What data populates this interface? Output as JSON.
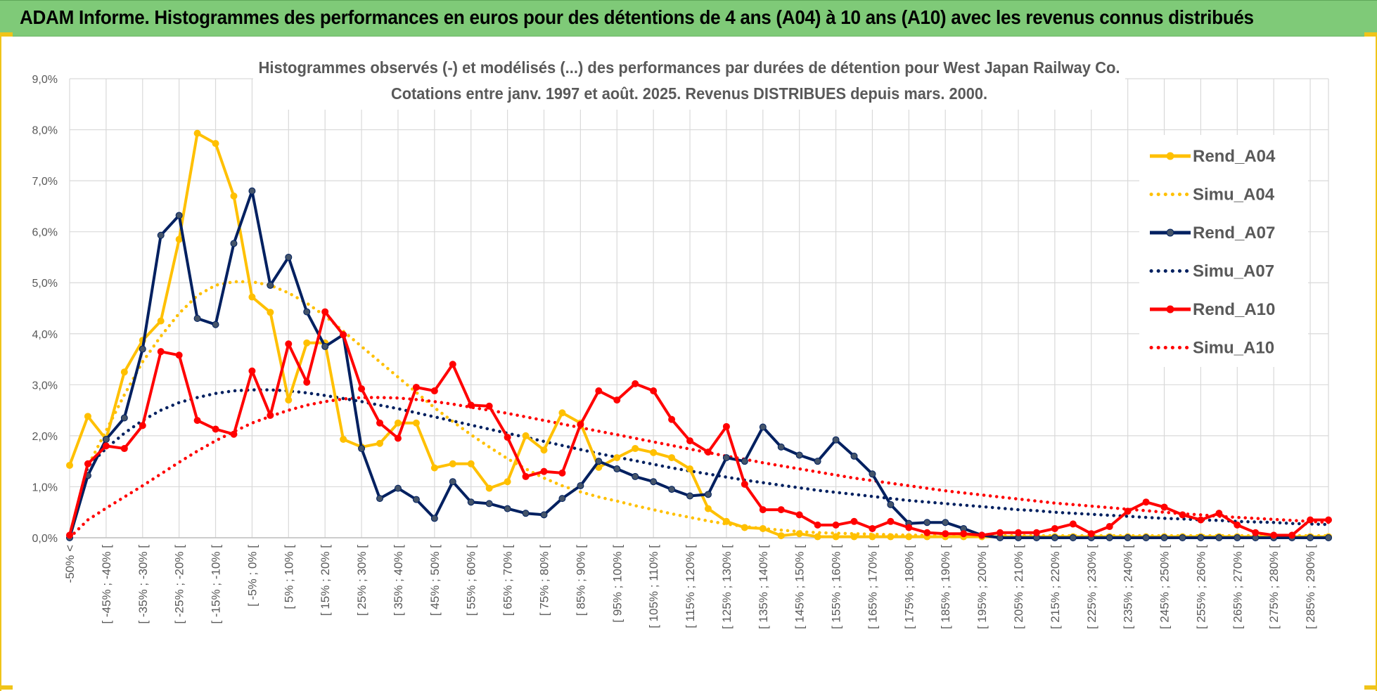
{
  "header": {
    "title": "ADAM Informe. Histogrammes des performances en euros pour des détentions de 4 ans (A04) à 10 ans (A10) avec les revenus connus distribués"
  },
  "chart_data": {
    "type": "line",
    "title": "Histogrammes observés (-) et modélisés (...) des performances par durées de détention pour West Japan Railway Co.",
    "subtitle": "Cotations entre janv. 1997 et août. 2025. Revenus DISTRIBUES depuis mars. 2000.",
    "xlabel": "",
    "ylabel": "",
    "ylim": [
      0,
      9
    ],
    "y_ticks": [
      "0,0%",
      "1,0%",
      "2,0%",
      "3,0%",
      "4,0%",
      "5,0%",
      "6,0%",
      "7,0%",
      "8,0%",
      "9,0%"
    ],
    "grid": true,
    "legend_position": "right",
    "n_points": 70,
    "x_tick_labels": [
      "-50% <",
      "[ -45% ; -40% [",
      "[ -35% ; -30% [",
      "[ -25% ; -20% [",
      "[ -15% ; -10% [",
      "[ -5% ; 0% [",
      "[ 5% ; 10% [",
      "[ 15% ; 20% [",
      "[ 25% ; 30% [",
      "[ 35% ; 40% [",
      "[ 45% ; 50% [",
      "[ 55% ; 60% [",
      "[ 65% ; 70% [",
      "[ 75% ; 80% [",
      "[ 85% ; 90% [",
      "[ 95% ; 100% [",
      "[ 105% ; 110% [",
      "[ 115% ; 120% [",
      "[ 125% ; 130% [",
      "[ 135% ; 140% [",
      "[ 145% ; 150% [",
      "[ 155% ; 160% [",
      "[ 165% ; 170% [",
      "[ 175% ; 180% [",
      "[ 185% ; 190% [",
      "[ 195% ; 200% [",
      "[ 205% ; 210% [",
      "[ 215% ; 220% [",
      "[ 225% ; 230% [",
      "[ 235% ; 240% [",
      "[ 245% ; 250% [",
      "[ 255% ; 260% [",
      "[ 265% ; 270% [",
      "[ 275% ; 280% [",
      "[ 285% ; 290% ["
    ],
    "series": [
      {
        "name": "Rend_A04",
        "color": "#ffc000",
        "style": "solid",
        "markers": true,
        "values": [
          1.42,
          2.38,
          1.93,
          3.25,
          3.87,
          4.25,
          5.85,
          7.93,
          7.73,
          6.7,
          4.72,
          4.42,
          2.7,
          3.82,
          3.82,
          1.93,
          1.78,
          1.85,
          2.25,
          2.25,
          1.37,
          1.45,
          1.45,
          0.97,
          1.1,
          2.0,
          1.72,
          2.45,
          2.25,
          1.38,
          1.57,
          1.75,
          1.67,
          1.57,
          1.35,
          0.57,
          0.32,
          0.2,
          0.18,
          0.04,
          0.08,
          0.02,
          0.02,
          0.02,
          0.02,
          0.02,
          0.02,
          0.02,
          0.02,
          0.02,
          0.02,
          0.02,
          0.02,
          0.02,
          0.02,
          0.02,
          0.02,
          0.02,
          0.02,
          0.02,
          0.02,
          0.02,
          0.02,
          0.02,
          0.02,
          0.02,
          0.02,
          0.02,
          0.02,
          0.02
        ]
      },
      {
        "name": "Simu_A04",
        "color": "#ffc000",
        "style": "dotted",
        "markers": false,
        "values": [
          0.0,
          1.4,
          2.1,
          2.8,
          3.45,
          3.95,
          4.4,
          4.75,
          4.95,
          5.02,
          5.02,
          4.95,
          4.8,
          4.6,
          4.35,
          4.05,
          3.75,
          3.45,
          3.15,
          2.85,
          2.55,
          2.28,
          2.02,
          1.78,
          1.55,
          1.35,
          1.17,
          1.02,
          0.9,
          0.8,
          0.72,
          0.63,
          0.55,
          0.47,
          0.4,
          0.33,
          0.27,
          0.22,
          0.18,
          0.15,
          0.12,
          0.1,
          0.09,
          0.08,
          0.07,
          0.06,
          0.05,
          0.05,
          0.04,
          0.04,
          0.04,
          0.04,
          0.04,
          0.04,
          0.04,
          0.04,
          0.04,
          0.04,
          0.04,
          0.04,
          0.04,
          0.04,
          0.04,
          0.04,
          0.04,
          0.04,
          0.04,
          0.04,
          0.04,
          0.04
        ]
      },
      {
        "name": "Rend_A07",
        "color": "#002060",
        "style": "solid",
        "markers": true,
        "values": [
          0.0,
          1.22,
          1.93,
          2.35,
          3.7,
          5.93,
          6.32,
          4.3,
          4.18,
          5.77,
          6.8,
          4.95,
          5.5,
          4.43,
          3.75,
          3.98,
          1.75,
          0.77,
          0.97,
          0.75,
          0.38,
          1.1,
          0.7,
          0.67,
          0.57,
          0.48,
          0.45,
          0.77,
          1.02,
          1.5,
          1.35,
          1.2,
          1.1,
          0.95,
          0.82,
          0.85,
          1.57,
          1.5,
          2.17,
          1.78,
          1.62,
          1.5,
          1.92,
          1.6,
          1.25,
          0.65,
          0.28,
          0.3,
          0.3,
          0.18,
          0.05,
          0.0,
          0.0,
          0.0,
          0.0,
          0.0,
          0.0,
          0.0,
          0.0,
          0.0,
          0.0,
          0.0,
          0.0,
          0.0,
          0.0,
          0.0,
          0.0,
          0.0,
          0.0,
          0.0
        ]
      },
      {
        "name": "Simu_A07",
        "color": "#002060",
        "style": "dotted",
        "markers": false,
        "values": [
          0.0,
          1.4,
          1.75,
          2.05,
          2.3,
          2.5,
          2.65,
          2.75,
          2.83,
          2.88,
          2.9,
          2.9,
          2.88,
          2.84,
          2.79,
          2.73,
          2.67,
          2.6,
          2.53,
          2.45,
          2.37,
          2.29,
          2.21,
          2.13,
          2.05,
          1.97,
          1.89,
          1.81,
          1.73,
          1.65,
          1.58,
          1.51,
          1.44,
          1.37,
          1.31,
          1.25,
          1.19,
          1.13,
          1.08,
          1.03,
          0.98,
          0.93,
          0.89,
          0.85,
          0.81,
          0.77,
          0.73,
          0.7,
          0.67,
          0.64,
          0.61,
          0.58,
          0.55,
          0.53,
          0.5,
          0.48,
          0.46,
          0.44,
          0.42,
          0.4,
          0.38,
          0.37,
          0.35,
          0.34,
          0.32,
          0.31,
          0.3,
          0.28,
          0.27,
          0.26
        ]
      },
      {
        "name": "Rend_A10",
        "color": "#ff0000",
        "style": "solid",
        "markers": true,
        "values": [
          0.05,
          1.45,
          1.8,
          1.75,
          2.2,
          3.65,
          3.58,
          2.3,
          2.13,
          2.03,
          3.27,
          2.4,
          3.8,
          3.05,
          4.43,
          3.98,
          2.92,
          2.25,
          1.95,
          2.95,
          2.88,
          3.4,
          2.6,
          2.58,
          1.97,
          1.2,
          1.3,
          1.27,
          2.22,
          2.88,
          2.7,
          3.02,
          2.88,
          2.32,
          1.9,
          1.68,
          2.18,
          1.05,
          0.55,
          0.55,
          0.45,
          0.25,
          0.25,
          0.32,
          0.18,
          0.32,
          0.2,
          0.1,
          0.08,
          0.08,
          0.05,
          0.1,
          0.1,
          0.1,
          0.18,
          0.27,
          0.08,
          0.22,
          0.52,
          0.7,
          0.6,
          0.45,
          0.35,
          0.48,
          0.25,
          0.1,
          0.05,
          0.05,
          0.35,
          0.35
        ]
      },
      {
        "name": "Simu_A10",
        "color": "#ff0000",
        "style": "dotted",
        "markers": false,
        "values": [
          0.0,
          0.35,
          0.58,
          0.8,
          1.02,
          1.25,
          1.48,
          1.7,
          1.9,
          2.08,
          2.25,
          2.38,
          2.5,
          2.6,
          2.67,
          2.72,
          2.75,
          2.75,
          2.74,
          2.71,
          2.67,
          2.62,
          2.56,
          2.5,
          2.44,
          2.37,
          2.3,
          2.23,
          2.16,
          2.09,
          2.02,
          1.95,
          1.88,
          1.81,
          1.74,
          1.67,
          1.6,
          1.54,
          1.47,
          1.41,
          1.35,
          1.29,
          1.23,
          1.17,
          1.12,
          1.07,
          1.02,
          0.97,
          0.92,
          0.88,
          0.84,
          0.8,
          0.76,
          0.72,
          0.68,
          0.65,
          0.62,
          0.59,
          0.56,
          0.53,
          0.5,
          0.47,
          0.45,
          0.42,
          0.4,
          0.38,
          0.36,
          0.34,
          0.32,
          0.3
        ]
      }
    ]
  }
}
